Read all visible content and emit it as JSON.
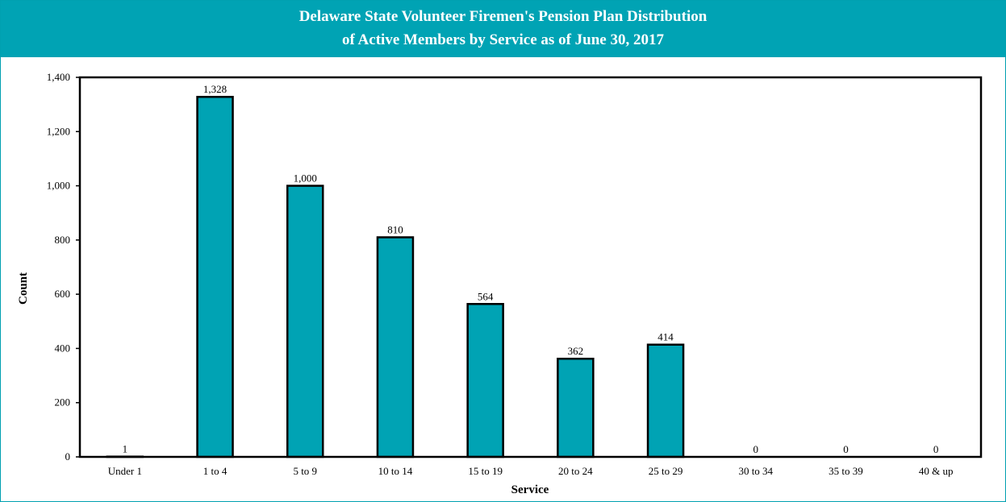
{
  "chart_data": {
    "type": "bar",
    "title_line1": "Delaware State Volunteer Firemen's Pension Plan Distribution",
    "title_line2": "of Active Members by Service as of June 30, 2017",
    "xlabel": "Service",
    "ylabel": "Count",
    "categories": [
      "Under 1",
      "1 to 4",
      "5 to 9",
      "10 to 14",
      "15 to 19",
      "20 to 24",
      "25 to 29",
      "30 to 34",
      "35 to 39",
      "40 & up"
    ],
    "values": [
      1,
      1328,
      1000,
      810,
      564,
      362,
      414,
      0,
      0,
      0
    ],
    "value_labels": [
      "1",
      "1,328",
      "1,000",
      "810",
      "564",
      "362",
      "414",
      "0",
      "0",
      "0"
    ],
    "ylim": [
      0,
      1400
    ],
    "yticks": [
      0,
      200,
      400,
      600,
      800,
      1000,
      1200,
      1400
    ],
    "ytick_labels": [
      "0",
      "200",
      "400",
      "600",
      "800",
      "1,000",
      "1,200",
      "1,400"
    ],
    "grid": false,
    "bar_color": "#00a3b4",
    "header_color": "#00a3b4"
  }
}
